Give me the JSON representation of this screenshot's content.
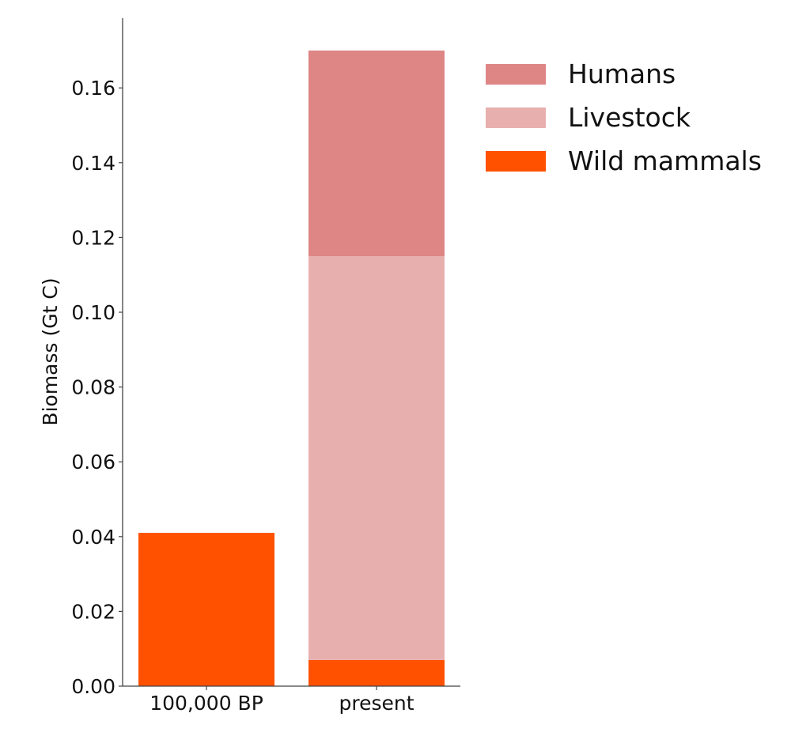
{
  "chart_data": {
    "type": "bar",
    "stacked": true,
    "title": "",
    "xlabel": "",
    "ylabel": "Biomass (Gt C)",
    "categories": [
      "100,000 BP",
      "present"
    ],
    "series": [
      {
        "name": "Wild mammals",
        "color": "#FF5100",
        "values": [
          0.041,
          0.007
        ]
      },
      {
        "name": "Livestock",
        "color": "#E8AFAF",
        "values": [
          0,
          0.108
        ]
      },
      {
        "name": "Humans",
        "color": "#DE8585",
        "values": [
          0,
          0.055
        ]
      }
    ],
    "ylim": [
      0,
      0.18
    ],
    "yticks": [
      "0.00",
      "0.02",
      "0.04",
      "0.06",
      "0.08",
      "0.10",
      "0.12",
      "0.14",
      "0.16"
    ],
    "grid": false,
    "legend_position": "upper right (outside plot area)"
  },
  "legend": {
    "items": [
      {
        "label": "Humans",
        "color": "#DE8585"
      },
      {
        "label": "Livestock",
        "color": "#E8AFAF"
      },
      {
        "label": "Wild mammals",
        "color": "#FF5100"
      }
    ]
  }
}
